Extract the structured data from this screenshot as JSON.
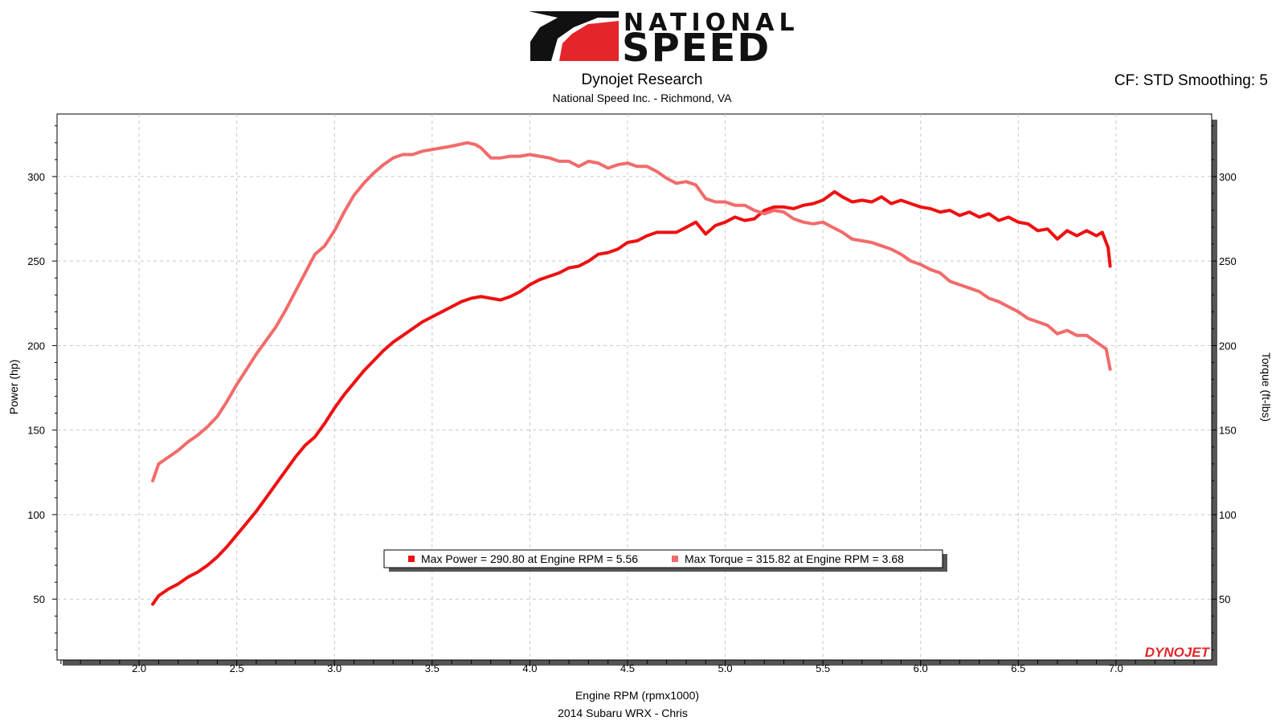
{
  "header": {
    "logo_word1": "NATIONAL",
    "logo_word2": "SPEED",
    "title": "Dynojet Research",
    "subtitle": "National Speed Inc. - Richmond, VA",
    "settings": "CF: STD Smoothing: 5"
  },
  "footer": {
    "run_label": "2014 Subaru WRX - Chris",
    "brand": "DYNOJET"
  },
  "legend": {
    "power_text": "Max Power = 290.80 at Engine RPM = 5.56",
    "torque_text": "Max Torque = 315.82 at Engine RPM = 3.68"
  },
  "colors": {
    "power": "#ee1111",
    "torque": "#f26b6b",
    "grid": "#c8c8c8",
    "axis": "#000000"
  },
  "chart_data": {
    "type": "line",
    "xlabel": "Engine RPM (rpmx1000)",
    "ylabel_left": "Power (hp)",
    "ylabel_right": "Torque (ft-lbs)",
    "xlim": [
      1.58,
      7.49
    ],
    "ylim": [
      14,
      337
    ],
    "x_ticks": [
      "2.0",
      "2.5",
      "3.0",
      "3.5",
      "4.0",
      "4.5",
      "5.0",
      "5.5",
      "6.0",
      "6.5",
      "7.0"
    ],
    "y_ticks": [
      "50",
      "100",
      "150",
      "200",
      "250",
      "300"
    ],
    "grid": true,
    "legend_position": "bottom-center",
    "series": [
      {
        "name": "Power",
        "axis": "left",
        "color_key": "power",
        "points": [
          [
            2.07,
            47
          ],
          [
            2.1,
            52
          ],
          [
            2.15,
            56
          ],
          [
            2.2,
            59
          ],
          [
            2.25,
            63
          ],
          [
            2.3,
            66
          ],
          [
            2.35,
            70
          ],
          [
            2.4,
            75
          ],
          [
            2.45,
            81
          ],
          [
            2.5,
            88
          ],
          [
            2.55,
            95
          ],
          [
            2.6,
            102
          ],
          [
            2.65,
            110
          ],
          [
            2.7,
            118
          ],
          [
            2.75,
            126
          ],
          [
            2.8,
            134
          ],
          [
            2.85,
            141
          ],
          [
            2.9,
            146
          ],
          [
            2.95,
            154
          ],
          [
            3.0,
            163
          ],
          [
            3.05,
            171
          ],
          [
            3.1,
            178
          ],
          [
            3.15,
            185
          ],
          [
            3.2,
            191
          ],
          [
            3.25,
            197
          ],
          [
            3.3,
            202
          ],
          [
            3.35,
            206
          ],
          [
            3.4,
            210
          ],
          [
            3.45,
            214
          ],
          [
            3.5,
            217
          ],
          [
            3.55,
            220
          ],
          [
            3.6,
            223
          ],
          [
            3.65,
            226
          ],
          [
            3.7,
            228
          ],
          [
            3.75,
            229
          ],
          [
            3.8,
            228
          ],
          [
            3.85,
            227
          ],
          [
            3.9,
            229
          ],
          [
            3.95,
            232
          ],
          [
            4.0,
            236
          ],
          [
            4.05,
            239
          ],
          [
            4.1,
            241
          ],
          [
            4.15,
            243
          ],
          [
            4.2,
            246
          ],
          [
            4.25,
            247
          ],
          [
            4.3,
            250
          ],
          [
            4.35,
            254
          ],
          [
            4.4,
            255
          ],
          [
            4.45,
            257
          ],
          [
            4.5,
            261
          ],
          [
            4.55,
            262
          ],
          [
            4.6,
            265
          ],
          [
            4.65,
            267
          ],
          [
            4.7,
            267
          ],
          [
            4.75,
            267
          ],
          [
            4.8,
            270
          ],
          [
            4.85,
            273
          ],
          [
            4.9,
            266
          ],
          [
            4.95,
            271
          ],
          [
            5.0,
            273
          ],
          [
            5.05,
            276
          ],
          [
            5.1,
            274
          ],
          [
            5.15,
            275
          ],
          [
            5.2,
            280
          ],
          [
            5.25,
            282
          ],
          [
            5.3,
            282
          ],
          [
            5.35,
            281
          ],
          [
            5.4,
            283
          ],
          [
            5.45,
            284
          ],
          [
            5.5,
            286
          ],
          [
            5.56,
            291
          ],
          [
            5.6,
            288
          ],
          [
            5.65,
            285
          ],
          [
            5.7,
            286
          ],
          [
            5.75,
            285
          ],
          [
            5.8,
            288
          ],
          [
            5.85,
            284
          ],
          [
            5.9,
            286
          ],
          [
            5.95,
            284
          ],
          [
            6.0,
            282
          ],
          [
            6.05,
            281
          ],
          [
            6.1,
            279
          ],
          [
            6.15,
            280
          ],
          [
            6.2,
            277
          ],
          [
            6.25,
            279
          ],
          [
            6.3,
            276
          ],
          [
            6.35,
            278
          ],
          [
            6.4,
            274
          ],
          [
            6.45,
            276
          ],
          [
            6.5,
            273
          ],
          [
            6.55,
            272
          ],
          [
            6.6,
            268
          ],
          [
            6.65,
            269
          ],
          [
            6.7,
            263
          ],
          [
            6.75,
            268
          ],
          [
            6.8,
            265
          ],
          [
            6.85,
            268
          ],
          [
            6.9,
            265
          ],
          [
            6.93,
            267
          ],
          [
            6.96,
            258
          ],
          [
            6.97,
            247
          ]
        ]
      },
      {
        "name": "Torque",
        "axis": "right",
        "color_key": "torque",
        "points": [
          [
            2.07,
            120
          ],
          [
            2.1,
            130
          ],
          [
            2.15,
            134
          ],
          [
            2.2,
            138
          ],
          [
            2.25,
            143
          ],
          [
            2.3,
            147
          ],
          [
            2.35,
            152
          ],
          [
            2.4,
            158
          ],
          [
            2.45,
            167
          ],
          [
            2.5,
            177
          ],
          [
            2.55,
            186
          ],
          [
            2.6,
            195
          ],
          [
            2.65,
            203
          ],
          [
            2.7,
            211
          ],
          [
            2.75,
            221
          ],
          [
            2.8,
            232
          ],
          [
            2.85,
            243
          ],
          [
            2.9,
            254
          ],
          [
            2.95,
            259
          ],
          [
            3.0,
            268
          ],
          [
            3.05,
            279
          ],
          [
            3.1,
            289
          ],
          [
            3.15,
            296
          ],
          [
            3.2,
            302
          ],
          [
            3.25,
            307
          ],
          [
            3.3,
            311
          ],
          [
            3.35,
            313
          ],
          [
            3.4,
            313
          ],
          [
            3.45,
            315
          ],
          [
            3.5,
            316
          ],
          [
            3.55,
            317
          ],
          [
            3.6,
            318
          ],
          [
            3.68,
            320
          ],
          [
            3.72,
            319
          ],
          [
            3.75,
            317
          ],
          [
            3.8,
            311
          ],
          [
            3.85,
            311
          ],
          [
            3.9,
            312
          ],
          [
            3.95,
            312
          ],
          [
            4.0,
            313
          ],
          [
            4.05,
            312
          ],
          [
            4.1,
            311
          ],
          [
            4.15,
            309
          ],
          [
            4.2,
            309
          ],
          [
            4.25,
            306
          ],
          [
            4.3,
            309
          ],
          [
            4.35,
            308
          ],
          [
            4.4,
            305
          ],
          [
            4.45,
            307
          ],
          [
            4.5,
            308
          ],
          [
            4.55,
            306
          ],
          [
            4.6,
            306
          ],
          [
            4.65,
            303
          ],
          [
            4.7,
            299
          ],
          [
            4.75,
            296
          ],
          [
            4.8,
            297
          ],
          [
            4.85,
            295
          ],
          [
            4.9,
            287
          ],
          [
            4.95,
            285
          ],
          [
            5.0,
            285
          ],
          [
            5.05,
            283
          ],
          [
            5.1,
            283
          ],
          [
            5.15,
            280
          ],
          [
            5.2,
            278
          ],
          [
            5.25,
            280
          ],
          [
            5.3,
            279
          ],
          [
            5.35,
            275
          ],
          [
            5.4,
            273
          ],
          [
            5.45,
            272
          ],
          [
            5.5,
            273
          ],
          [
            5.55,
            270
          ],
          [
            5.6,
            267
          ],
          [
            5.65,
            263
          ],
          [
            5.7,
            262
          ],
          [
            5.75,
            261
          ],
          [
            5.8,
            259
          ],
          [
            5.85,
            257
          ],
          [
            5.9,
            254
          ],
          [
            5.95,
            250
          ],
          [
            6.0,
            248
          ],
          [
            6.05,
            245
          ],
          [
            6.1,
            243
          ],
          [
            6.15,
            238
          ],
          [
            6.2,
            236
          ],
          [
            6.25,
            234
          ],
          [
            6.3,
            232
          ],
          [
            6.35,
            228
          ],
          [
            6.4,
            226
          ],
          [
            6.45,
            223
          ],
          [
            6.5,
            220
          ],
          [
            6.55,
            216
          ],
          [
            6.6,
            214
          ],
          [
            6.65,
            212
          ],
          [
            6.7,
            207
          ],
          [
            6.75,
            209
          ],
          [
            6.8,
            206
          ],
          [
            6.85,
            206
          ],
          [
            6.9,
            202
          ],
          [
            6.95,
            198
          ],
          [
            6.97,
            186
          ]
        ]
      }
    ]
  }
}
